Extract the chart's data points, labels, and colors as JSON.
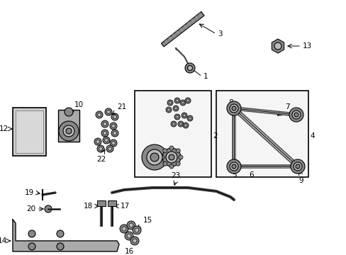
{
  "bg_color": "#ffffff",
  "line_color": "#000000",
  "gray_dark": "#444444",
  "gray_mid": "#888888",
  "gray_light": "#bbbbbb",
  "gray_fill": "#cccccc",
  "box_fill": "#f5f5f5",
  "lfs": 7.5
}
